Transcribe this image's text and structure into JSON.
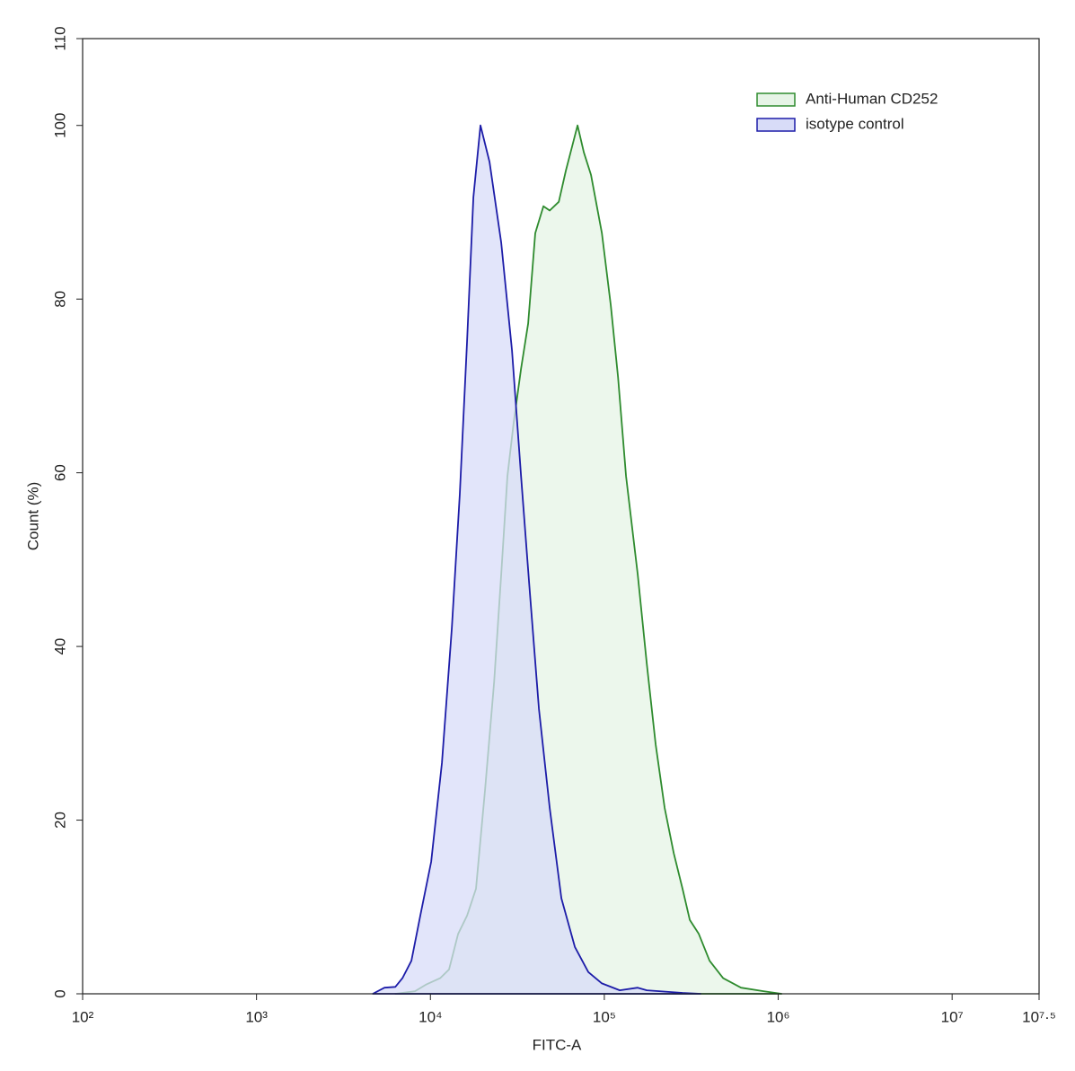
{
  "chart_data": {
    "type": "area",
    "x_label": "FITC-A",
    "y_label": "Count  (%)",
    "xscale": "log",
    "legend": "top-right",
    "xlim": [
      100,
      31622777
    ],
    "ylim": [
      0,
      110
    ],
    "xticks": [
      {
        "value": 100,
        "label": "10²"
      },
      {
        "value": 1000,
        "label": "10³"
      },
      {
        "value": 10000,
        "label": "10⁴"
      },
      {
        "value": 100000,
        "label": "10⁵"
      },
      {
        "value": 1000000,
        "label": "10⁶"
      },
      {
        "value": 10000000,
        "label": "10⁷"
      },
      {
        "value": 31622777,
        "label": "10⁷·⁵"
      }
    ],
    "yticks": [
      0,
      20,
      40,
      60,
      80,
      100,
      110
    ],
    "series": [
      {
        "name": "Anti-Human CD252",
        "color": "#2e8b2e",
        "fill": "#e6f4e6",
        "x": [
          6280,
          8150,
          9510,
          11370,
          12800,
          14420,
          16250,
          18290,
          20610,
          23230,
          25530,
          27730,
          30130,
          33190,
          36480,
          40090,
          44670,
          48530,
          54700,
          60120,
          70150,
          76250,
          83900,
          96800,
          108900,
          119900,
          133400,
          155600,
          175400,
          197300,
          222300,
          250600,
          281800,
          310200,
          349300,
          402700,
          481900,
          611000,
          822500,
          1044000
        ],
        "values": [
          0,
          0.3,
          1.1,
          1.8,
          2.8,
          6.9,
          9.0,
          12.1,
          23.5,
          35.9,
          48.3,
          59.6,
          65.8,
          72.0,
          77.2,
          87.6,
          90.7,
          90.2,
          91.2,
          94.8,
          100,
          96.9,
          94.3,
          87.6,
          79.3,
          71.0,
          59.6,
          48.3,
          38.0,
          28.7,
          21.4,
          16.2,
          12.1,
          8.5,
          6.9,
          3.8,
          1.8,
          0.7,
          0.3,
          0
        ]
      },
      {
        "name": "isotype control",
        "color": "#1c1ca8",
        "fill": "#d8dcf8",
        "x": [
          4660,
          5440,
          6280,
          6900,
          7770,
          8750,
          10100,
          11650,
          13280,
          14760,
          16250,
          17660,
          19410,
          21880,
          25530,
          29440,
          33190,
          37330,
          42070,
          48530,
          56620,
          67720,
          80910,
          96800,
          122700,
          155600,
          175400,
          281800,
          358100
        ],
        "values": [
          0,
          0.7,
          0.8,
          1.8,
          3.8,
          9.0,
          15.2,
          26.6,
          42.1,
          57.6,
          75.2,
          91.7,
          100,
          95.8,
          86.5,
          74.1,
          59.6,
          46.2,
          32.8,
          21.4,
          11.0,
          5.4,
          2.5,
          1.2,
          0.4,
          0.7,
          0.4,
          0.1,
          0
        ]
      }
    ]
  }
}
